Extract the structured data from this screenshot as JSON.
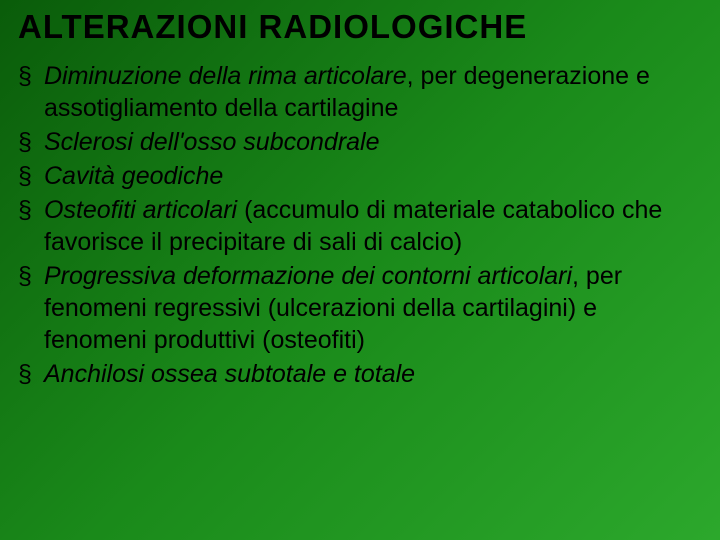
{
  "slide": {
    "title": "ALTERAZIONI RADIOLOGICHE",
    "items": [
      {
        "emph": "Diminuzione della rima articolare",
        "rest": ", per degenerazione e assotigliamento della cartilagine"
      },
      {
        "emph": "Sclerosi dell'osso subcondrale",
        "rest": ""
      },
      {
        "emph": "Cavità geodiche",
        "rest": ""
      },
      {
        "emph": "Osteofiti articolari",
        "rest": " (accumulo di materiale catabolico che favorisce il precipitare di sali di calcio)"
      },
      {
        "emph": "Progressiva deformazione dei contorni articolari",
        "rest": ", per fenomeni regressivi (ulcerazioni della cartilagini) e fenomeni produttivi (osteofiti)"
      },
      {
        "emph": "Anchilosi ossea subtotale e totale",
        "rest": ""
      }
    ],
    "colors": {
      "background_gradient_start": "#0a5c0a",
      "background_gradient_mid": "#1a8a1a",
      "background_gradient_end": "#2ca82c",
      "title_color": "#000000",
      "text_color": "#000000"
    },
    "typography": {
      "title_fontsize": 33,
      "title_fontweight": 900,
      "body_fontsize": 25,
      "font_family": "Arial"
    }
  }
}
